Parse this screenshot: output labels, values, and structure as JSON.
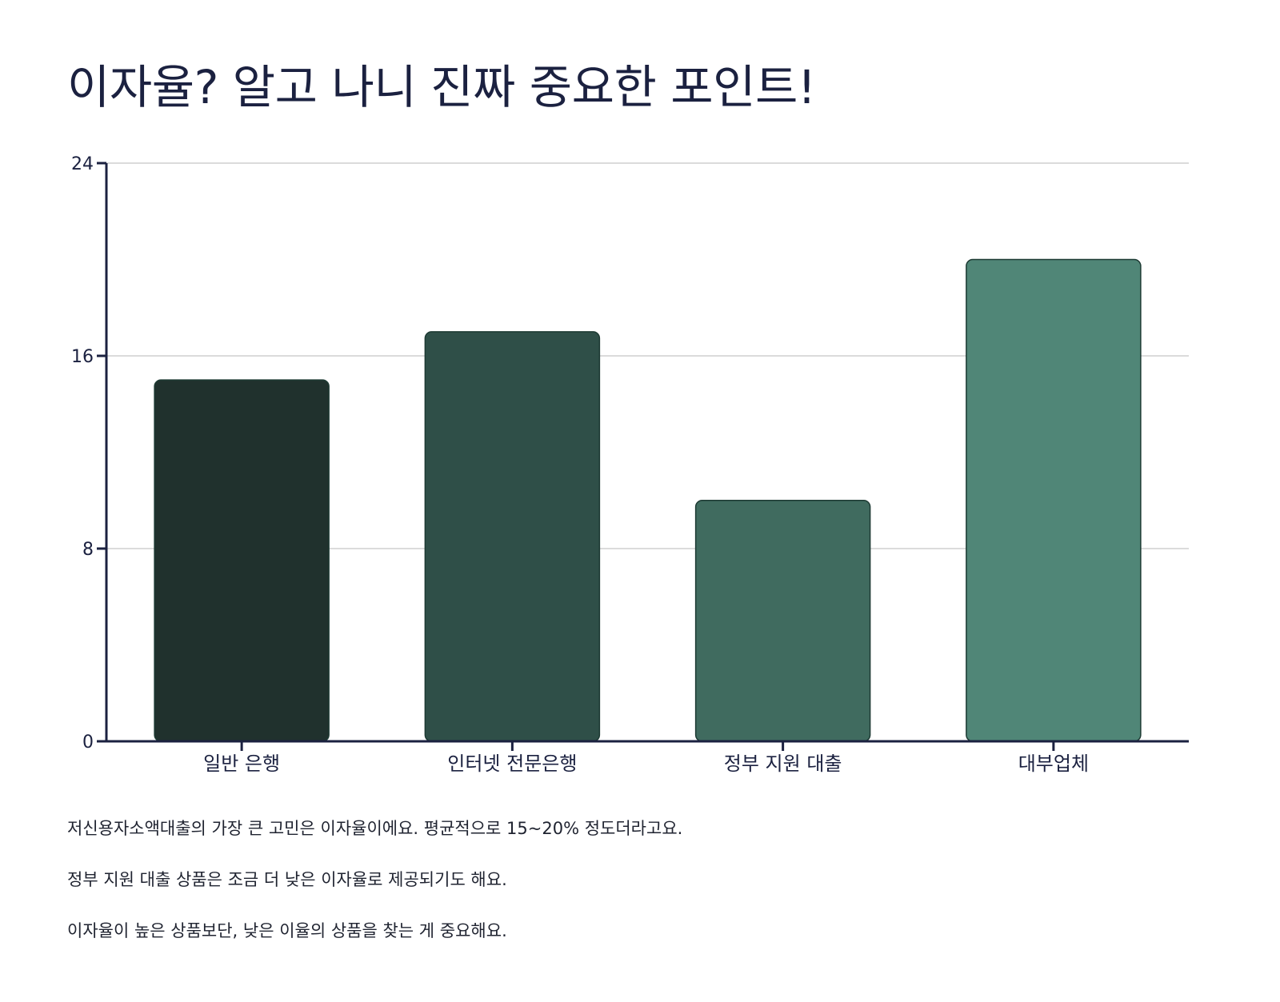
{
  "title": "이자율? 알고 나니 진짜 중요한 포인트!",
  "chart_data": {
    "type": "bar",
    "title": "",
    "xlabel": "",
    "ylabel": "",
    "categories": [
      "일반 은행",
      "인터넷 전문은행",
      "정부 지원 대출",
      "대부업체"
    ],
    "values": [
      15,
      17,
      10,
      20
    ],
    "colors": [
      "#20312d",
      "#2f4f48",
      "#406b5f",
      "#508677"
    ],
    "ylim": [
      0,
      24
    ],
    "yticks": [
      0,
      8,
      16,
      24
    ],
    "grid": true,
    "legend": "none"
  },
  "notes": [
    "저신용자소액대출의 가장 큰 고민은 이자율이에요. 평균적으로 15~20% 정도더라고요.",
    "정부 지원 대출 상품은 조금 더 낮은 이자율로 제공되기도 해요.",
    "이자율이 높은 상품보단, 낮은 이율의 상품을 찾는 게 중요해요."
  ]
}
